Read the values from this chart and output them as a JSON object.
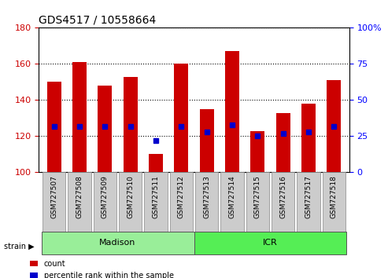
{
  "title": "GDS4517 / 10558664",
  "samples": [
    "GSM727507",
    "GSM727508",
    "GSM727509",
    "GSM727510",
    "GSM727511",
    "GSM727512",
    "GSM727513",
    "GSM727514",
    "GSM727515",
    "GSM727516",
    "GSM727517",
    "GSM727518"
  ],
  "counts": [
    150,
    161,
    148,
    153,
    110,
    160,
    135,
    167,
    123,
    133,
    138,
    151
  ],
  "percentile_ranks": [
    32,
    32,
    32,
    32,
    22,
    32,
    28,
    33,
    25,
    27,
    28,
    32
  ],
  "ymin": 100,
  "ymax": 180,
  "yticks": [
    100,
    120,
    140,
    160,
    180
  ],
  "right_yticks": [
    0,
    25,
    50,
    75,
    100
  ],
  "bar_color": "#cc0000",
  "marker_color": "#0000cc",
  "bar_bg_color": "#cccccc",
  "groups": [
    {
      "label": "Madison",
      "start": 0,
      "end": 6,
      "color": "#99ee99"
    },
    {
      "label": "ICR",
      "start": 6,
      "end": 12,
      "color": "#55ee55"
    }
  ],
  "strain_label": "strain",
  "legend_count": "count",
  "legend_percentile": "percentile rank within the sample"
}
